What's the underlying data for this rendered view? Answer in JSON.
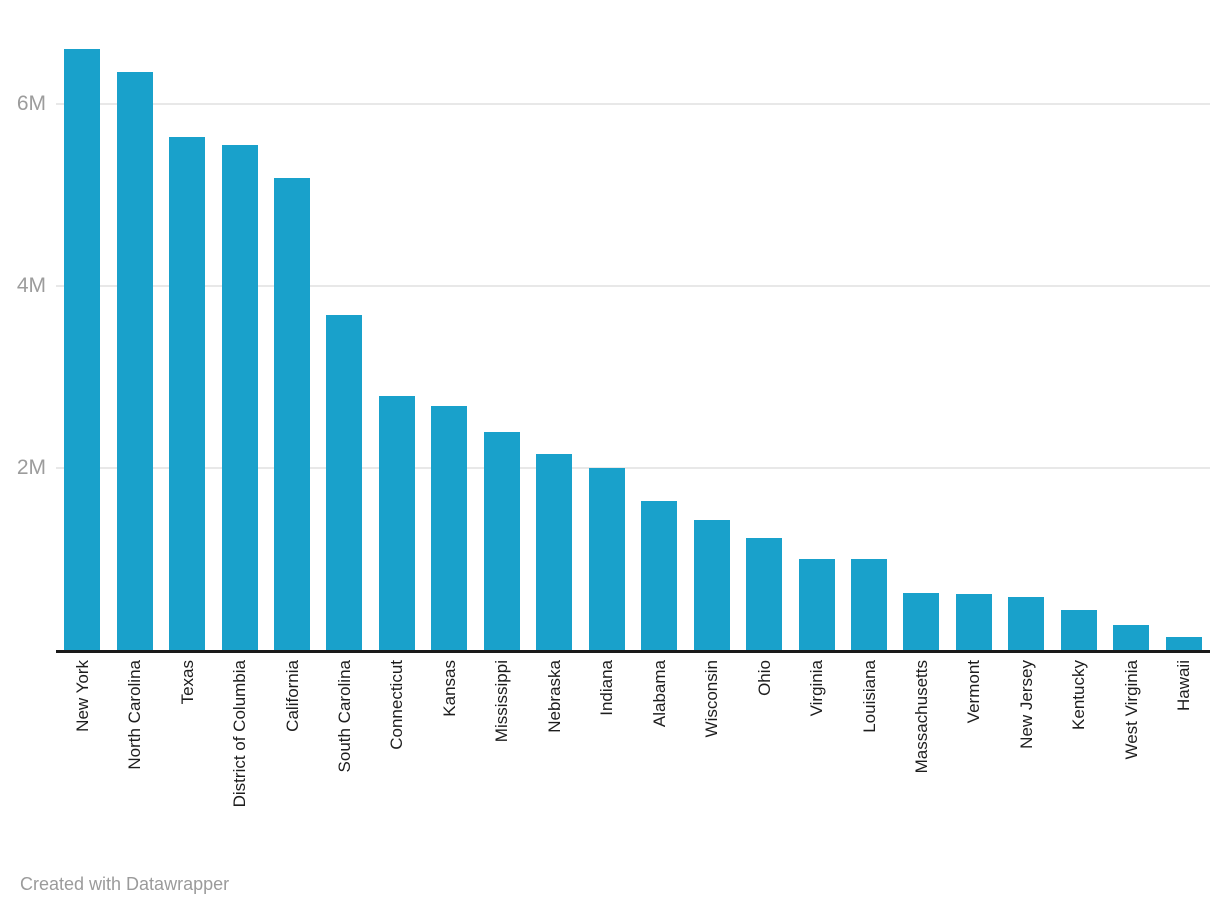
{
  "footer": {
    "credit": "Created with Datawrapper"
  },
  "chart_data": {
    "type": "bar",
    "title": "",
    "xlabel": "",
    "ylabel": "",
    "categories": [
      "New York",
      "North Carolina",
      "Texas",
      "District of Columbia",
      "California",
      "South Carolina",
      "Connecticut",
      "Kansas",
      "Mississippi",
      "Nebraska",
      "Indiana",
      "Alabama",
      "Wisconsin",
      "Ohio",
      "Virginia",
      "Louisiana",
      "Massachusetts",
      "Vermont",
      "New Jersey",
      "Kentucky",
      "West Virginia",
      "Hawaii"
    ],
    "values": [
      6600000,
      6350000,
      5640000,
      5550000,
      5190000,
      3680000,
      2790000,
      2680000,
      2400000,
      2150000,
      2000000,
      1640000,
      1430000,
      1230000,
      1000000,
      1000000,
      630000,
      620000,
      580000,
      440000,
      270000,
      140000
    ],
    "ylim": [
      0,
      7140000
    ],
    "yticks": [
      {
        "value": 2000000,
        "label": "2M"
      },
      {
        "value": 4000000,
        "label": "4M"
      },
      {
        "value": 6000000,
        "label": "6M"
      }
    ],
    "grid": true,
    "legend": "none",
    "x_labels_rotated_bottom_to_top": true,
    "bar_color": "#19a1cb",
    "axis_line_color": "#1a1a1a",
    "gridline_color": "#e8e8e8",
    "tick_label_color": "#9c9c9c",
    "category_label_color": "#1d1d1d",
    "background_color": "#ffffff"
  }
}
